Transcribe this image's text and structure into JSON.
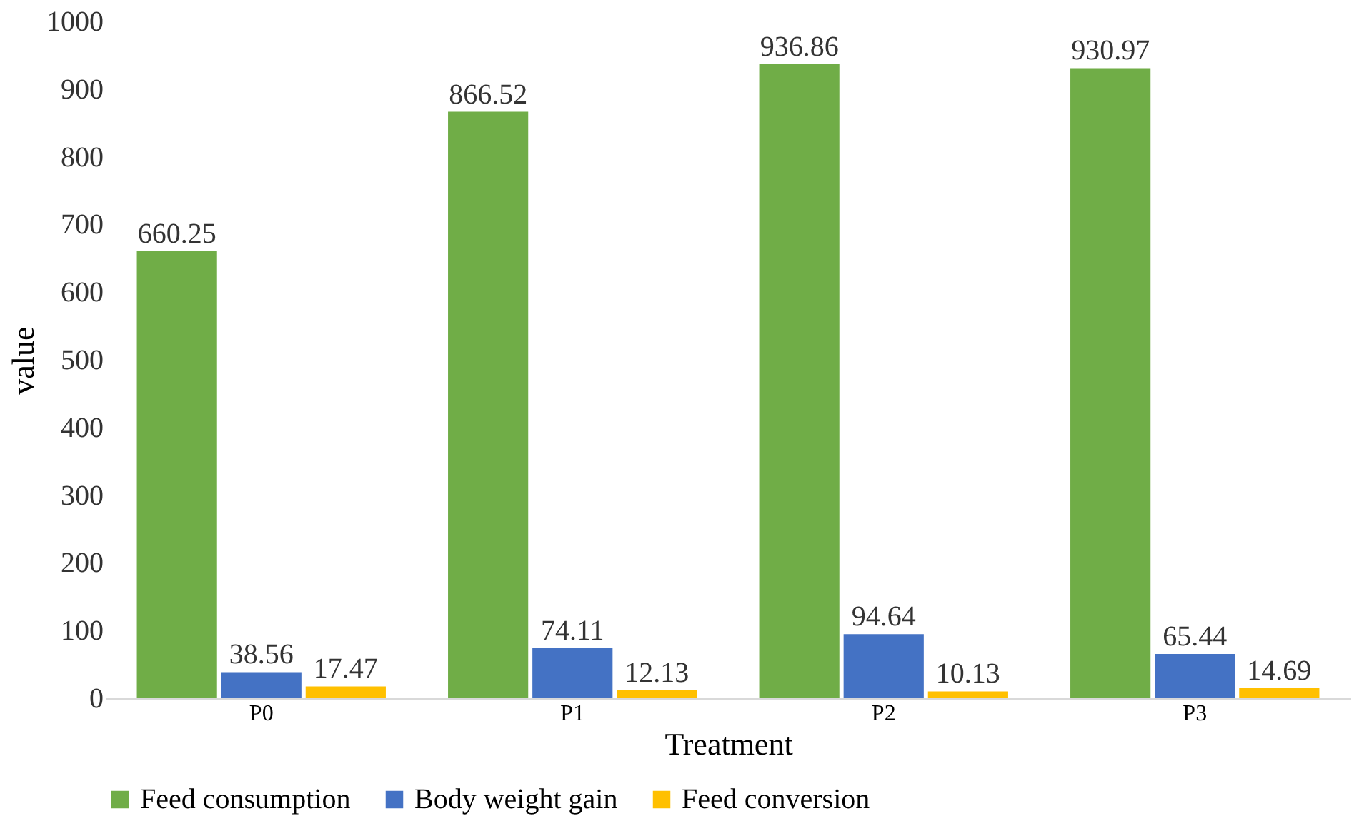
{
  "chart_data": {
    "type": "bar",
    "xlabel": "Treatment",
    "ylabel": "value",
    "categories": [
      "P0",
      "P1",
      "P2",
      "P3"
    ],
    "series": [
      {
        "name": "Feed consumption",
        "color": "#70ad47",
        "values": [
          660.25,
          866.52,
          936.86,
          930.97
        ]
      },
      {
        "name": "Body weight gain",
        "color": "#4472c4",
        "values": [
          38.56,
          74.11,
          94.64,
          65.44
        ]
      },
      {
        "name": "Feed conversion",
        "color": "#ffc000",
        "values": [
          17.47,
          12.13,
          10.13,
          14.69
        ]
      }
    ],
    "ylim": [
      0,
      1000
    ],
    "yticks": [
      0,
      100,
      200,
      300,
      400,
      500,
      600,
      700,
      800,
      900,
      1000
    ],
    "grid": false,
    "legend": "bottom",
    "data_labels": true
  }
}
